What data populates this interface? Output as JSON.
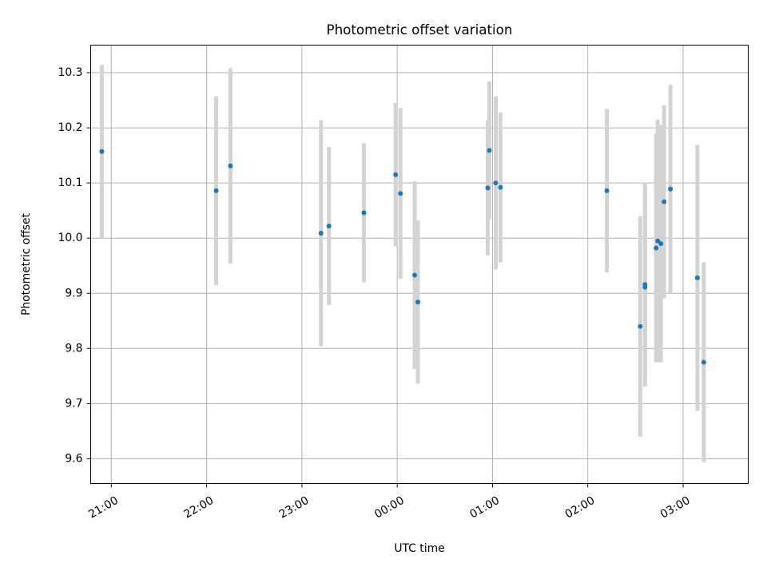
{
  "chart_data": {
    "type": "scatter",
    "title": "Photometric offset variation",
    "xlabel": "UTC time",
    "ylabel": "Photometric offset",
    "x_unit": "UTC time (HH:MM)",
    "xlim": [
      "20:47",
      "03:41"
    ],
    "ylim": [
      9.555,
      10.35
    ],
    "grid": true,
    "x_ticks": [
      "21:00",
      "22:00",
      "23:00",
      "00:00",
      "01:00",
      "02:00",
      "03:00"
    ],
    "y_ticks": [
      9.6,
      9.7,
      9.8,
      9.9,
      10.0,
      10.1,
      10.2,
      10.3
    ],
    "colors": {
      "points": "#1f77b4",
      "errorbars": "#d3d3d3",
      "grid": "#b0b0b0"
    },
    "series": [
      {
        "points": [
          {
            "x": "20:54",
            "y": 10.157,
            "yerr": 0.157
          },
          {
            "x": "22:06",
            "y": 10.086,
            "yerr": 0.171
          },
          {
            "x": "22:15",
            "y": 10.131,
            "yerr": 0.177
          },
          {
            "x": "23:12",
            "y": 10.009,
            "yerr": 0.205
          },
          {
            "x": "23:17",
            "y": 10.022,
            "yerr": 0.143
          },
          {
            "x": "23:39",
            "y": 10.046,
            "yerr": 0.126
          },
          {
            "x": "23:59",
            "y": 10.115,
            "yerr": 0.13
          },
          {
            "x": "00:02",
            "y": 10.081,
            "yerr": 0.155
          },
          {
            "x": "00:11",
            "y": 9.933,
            "yerr": 0.17
          },
          {
            "x": "00:13",
            "y": 9.884,
            "yerr": 0.148
          },
          {
            "x": "00:57",
            "y": 10.091,
            "yerr": 0.122
          },
          {
            "x": "00:58",
            "y": 10.159,
            "yerr": 0.125
          },
          {
            "x": "01:02",
            "y": 10.1,
            "yerr": 0.157
          },
          {
            "x": "01:05",
            "y": 10.092,
            "yerr": 0.136
          },
          {
            "x": "02:12",
            "y": 10.086,
            "yerr": 0.148
          },
          {
            "x": "02:33",
            "y": 9.84,
            "yerr": 0.2
          },
          {
            "x": "02:36",
            "y": 9.916,
            "yerr": 0.185
          },
          {
            "x": "02:36",
            "y": 9.911,
            "yerr": 0.17
          },
          {
            "x": "02:43",
            "y": 9.982,
            "yerr": 0.207
          },
          {
            "x": "02:44",
            "y": 9.995,
            "yerr": 0.22
          },
          {
            "x": "02:46",
            "y": 9.99,
            "yerr": 0.215
          },
          {
            "x": "02:48",
            "y": 10.066,
            "yerr": 0.175
          },
          {
            "x": "02:52",
            "y": 10.089,
            "yerr": 0.189
          },
          {
            "x": "03:09",
            "y": 9.928,
            "yerr": 0.241
          },
          {
            "x": "03:13",
            "y": 9.775,
            "yerr": 0.181
          }
        ]
      }
    ]
  }
}
